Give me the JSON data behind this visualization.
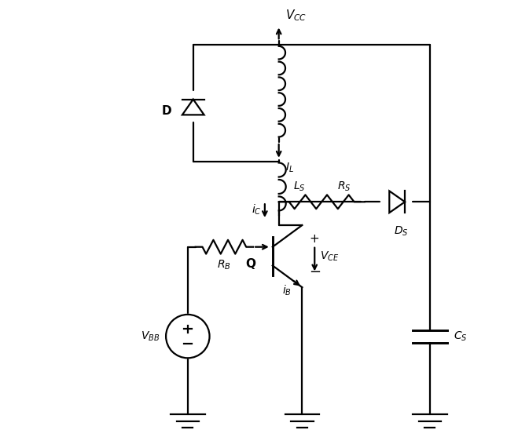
{
  "bg_color": "#ffffff",
  "line_color": "#000000",
  "fig_width": 6.45,
  "fig_height": 5.71,
  "dpi": 100
}
